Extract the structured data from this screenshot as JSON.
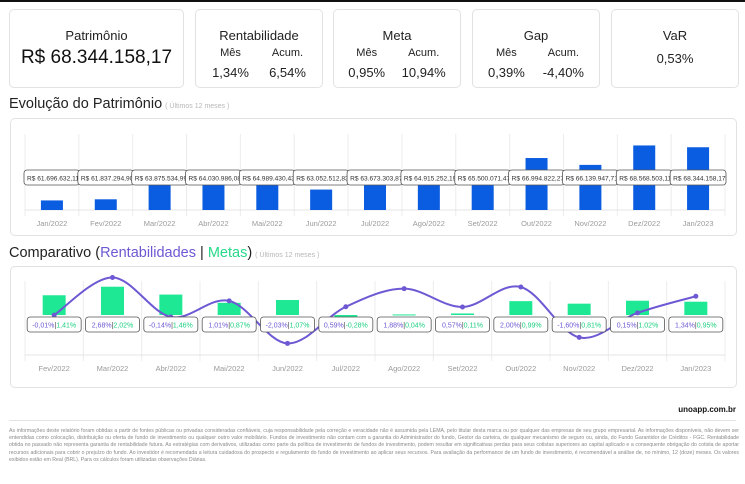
{
  "summary": {
    "patrimonio": {
      "title": "Patrimônio",
      "value": "R$ 68.344.158,17"
    },
    "rentabilidade": {
      "title": "Rentabilidade",
      "mes_label": "Mês",
      "acum_label": "Acum.",
      "mes": "1,34%",
      "acum": "6,54%"
    },
    "meta": {
      "title": "Meta",
      "mes_label": "Mês",
      "acum_label": "Acum.",
      "mes": "0,95%",
      "acum": "10,94%"
    },
    "gap": {
      "title": "Gap",
      "mes_label": "Mês",
      "acum_label": "Acum.",
      "mes": "0,39%",
      "acum": "-4,40%"
    },
    "var": {
      "title": "VaR",
      "value": "0,53%"
    }
  },
  "sections": {
    "evolucao": {
      "title": "Evolução do Patrimônio",
      "subtitle": "( Últimos 12 meses )"
    },
    "comparativo": {
      "title_prefix": "Comparativo (",
      "rent_label": "Rentabilidades",
      "sep": " | ",
      "meta_label": "Metas",
      "title_suffix": ")",
      "subtitle": "( Últimos 12 meses )"
    }
  },
  "colors": {
    "bar_blue": "#0a5ce0",
    "line_purple": "#6e58d3",
    "meta_green": "#1fe894"
  },
  "chart_data": [
    {
      "type": "bar",
      "title": "Evolução do Patrimônio",
      "xlabel": "",
      "ylabel": "",
      "grid": true,
      "categories": [
        "Jan/2022",
        "Fev/2022",
        "Mar/2022",
        "Abr/2022",
        "Mai/2022",
        "Jun/2022",
        "Jul/2022",
        "Ago/2022",
        "Set/2022",
        "Out/2022",
        "Nov/2022",
        "Dez/2022",
        "Jan/2023"
      ],
      "values": [
        61696632.11,
        61837294.9,
        63875534.99,
        64030986.08,
        64989430.43,
        63052512.83,
        63673303.87,
        64915252.19,
        65500071.47,
        66994822.27,
        66139947.71,
        68568503.11,
        68344158.17
      ],
      "labels": [
        "R$ 61.696.632,11",
        "R$ 61.837.294,90",
        "R$ 63.875.534,99",
        "R$ 64.030.986,08",
        "R$ 64.989.430,43",
        "R$ 63.052.512,83",
        "R$ 63.673.303,87",
        "R$ 64.915.252,19",
        "R$ 65.500.071,47",
        "R$ 66.994.822,27",
        "R$ 66.139.947,71",
        "R$ 68.568.503,11",
        "R$ 68.344.158,17"
      ],
      "ylim": [
        60500000,
        70000000
      ]
    },
    {
      "type": "bar+line",
      "title": "Comparativo (Rentabilidades | Metas)",
      "xlabel": "",
      "ylabel": "",
      "grid": true,
      "categories": [
        "Fev/2022",
        "Mar/2022",
        "Abr/2022",
        "Mai/2022",
        "Jun/2022",
        "Jul/2022",
        "Ago/2022",
        "Set/2022",
        "Out/2022",
        "Nov/2022",
        "Dez/2022",
        "Jan/2023"
      ],
      "series": [
        {
          "name": "Rentabilidades",
          "type": "line",
          "values": [
            -0.01,
            2.68,
            -0.14,
            1.01,
            -2.03,
            0.59,
            1.88,
            0.57,
            2.0,
            -1.6,
            0.15,
            1.34
          ],
          "labels": [
            "-0,01%",
            "2,68%",
            "-0,14%",
            "1,01%",
            "-2,03%",
            "0,59%",
            "1,88%",
            "0,57%",
            "2,00%",
            "-1,60%",
            "0,15%",
            "1,34%"
          ]
        },
        {
          "name": "Metas",
          "type": "bar",
          "values": [
            1.41,
            2.02,
            1.46,
            0.87,
            1.07,
            -0.28,
            0.04,
            0.11,
            0.99,
            0.81,
            1.02,
            0.95
          ],
          "labels": [
            "1,41%",
            "2,02%",
            "1,46%",
            "0,87%",
            "1,07%",
            "-0,28%",
            "0,04%",
            "0,11%",
            "0,99%",
            "0,81%",
            "1,02%",
            "0,95%"
          ]
        }
      ],
      "ylim": [
        -3.5,
        3.5
      ]
    }
  ],
  "footer": {
    "brand": "unoapp.com.br",
    "disclaimer": "As informações deste relatório foram obtidas a partir de fontes públicas ou privadas consideradas confiáveis, cuja responsabilidade pela correção e veracidade não é assumida pela LEMA, pelo titular desta marca ou por qualquer das empresas de seu grupo empresarial. As informações disponíveis, não devem ser entendidas como colocação, distribuição ou oferta de fundo de investimento ou qualquer outro valor mobiliário. Fundos de investimento não contam com a garantia do Administrador do fundo, Gestor da carteira, de qualquer mecanismo de seguro ou, ainda, do Fundo Garantidor de Créditos - FGC. Rentabilidade obtida no passado não representa garantia de rentabilidade futura. As estratégias com derivativos, utilizadas como parte da política de investimento de fundos de investimento, podem resultar em significativas perdas para seus cotistas superiores ao capital aplicado e a consequente obrigação do cotista de aportar recursos adicionais para cobrir o prejuízo do fundo. Ao investidor é recomendada a leitura cuidadosa do prospecto e regulamento do fundo de investimento ao aplicar seus recursos. Para avaliação da performance de um fundo de investimento, é recomendável a análise de, no mínimo, 12 (doze) meses. Os valores exibidos estão em Real (BRL). Para os cálculos foram utilizadas observações Diárias."
  }
}
